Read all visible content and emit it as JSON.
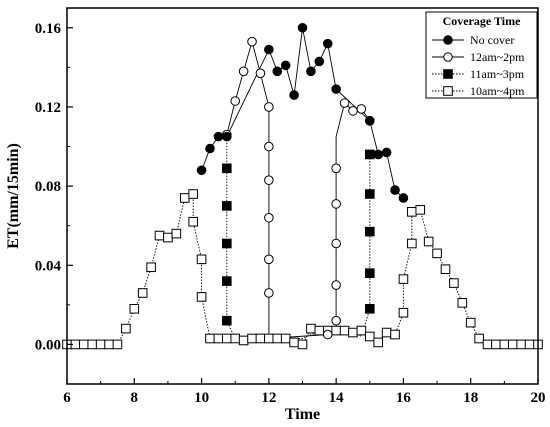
{
  "chart_data": {
    "type": "line",
    "xlabel": "Time",
    "ylabel": "ET(mm/15min)",
    "xlim": [
      6,
      20
    ],
    "ylim": [
      -0.02,
      0.17
    ],
    "xticks": [
      "6",
      "8",
      "10",
      "12",
      "14",
      "16",
      "18",
      "20"
    ],
    "yticks": [
      "0.00",
      "0.04",
      "0.08",
      "0.12",
      "0.16"
    ],
    "xtick_values": [
      6,
      8,
      10,
      12,
      14,
      16,
      18,
      20
    ],
    "ytick_values": [
      0.0,
      0.04,
      0.08,
      0.12,
      0.16
    ],
    "grid": false,
    "legend_title": "Coverage Time",
    "legend_position": "top-right",
    "series": [
      {
        "name": "No cover",
        "marker": "filled-circle",
        "line": "solid",
        "x": [
          10.0,
          10.25,
          10.5,
          10.75,
          12.0,
          12.25,
          12.5,
          12.75,
          13.0,
          13.25,
          13.5,
          13.75,
          14.0,
          15.0,
          15.25,
          15.5,
          15.75,
          16.0
        ],
        "y": [
          0.088,
          0.099,
          0.105,
          0.105,
          0.149,
          0.138,
          0.141,
          0.126,
          0.16,
          0.138,
          0.143,
          0.152,
          0.129,
          0.113,
          0.096,
          0.097,
          0.078,
          0.074
        ]
      },
      {
        "name": "12am~2pm",
        "marker": "open-circle",
        "line": "solid",
        "x": [
          10.75,
          11.0,
          11.25,
          11.5,
          11.75,
          12.0,
          12.0,
          12.0,
          12.0,
          12.0,
          12.0,
          13.75,
          14.0,
          14.0,
          14.0,
          14.0,
          14.0,
          14.25,
          14.5,
          14.75,
          15.0
        ],
        "y": [
          0.106,
          0.123,
          0.138,
          0.153,
          0.137,
          0.12,
          0.1,
          0.083,
          0.064,
          0.043,
          0.026,
          0.005,
          0.012,
          0.03,
          0.051,
          0.071,
          0.089,
          0.122,
          0.118,
          0.119,
          0.113
        ],
        "path_x": [
          10.75,
          11.0,
          11.25,
          11.5,
          11.75,
          12.0,
          12.0,
          12.0,
          12.0,
          12.0,
          12.0,
          12.0,
          13.75,
          14.0,
          14.0,
          14.0,
          14.0,
          14.0,
          14.0,
          14.25,
          14.5,
          14.75,
          15.0
        ],
        "path_y": [
          0.106,
          0.123,
          0.138,
          0.153,
          0.137,
          0.12,
          0.1,
          0.083,
          0.064,
          0.043,
          0.026,
          0.003,
          0.005,
          0.007,
          0.03,
          0.051,
          0.071,
          0.089,
          0.105,
          0.122,
          0.118,
          0.119,
          0.113
        ]
      },
      {
        "name": "11am~3pm",
        "marker": "filled-square",
        "line": "dotted",
        "x": [
          10.75,
          10.75,
          10.75,
          10.75,
          10.75,
          15.0,
          15.0,
          15.0,
          15.0,
          15.0
        ],
        "y": [
          0.089,
          0.07,
          0.051,
          0.032,
          0.012,
          0.018,
          0.036,
          0.057,
          0.076,
          0.096
        ],
        "path_x": [
          10.75,
          10.75,
          10.75,
          10.75,
          10.75,
          10.75,
          11.0,
          11.25,
          11.5,
          11.75,
          12.0,
          12.25,
          12.5,
          12.75,
          13.0,
          13.25,
          13.5,
          13.75,
          14.0,
          14.25,
          14.5,
          14.75,
          15.0,
          15.0,
          15.0,
          15.0,
          15.0,
          15.0
        ],
        "path_y": [
          0.105,
          0.089,
          0.07,
          0.051,
          0.032,
          0.012,
          0.003,
          0.003,
          0.003,
          0.003,
          0.003,
          0.003,
          0.003,
          0.003,
          0.003,
          0.005,
          0.006,
          0.006,
          0.006,
          0.006,
          0.006,
          0.004,
          0.018,
          0.036,
          0.057,
          0.076,
          0.096,
          0.096
        ]
      },
      {
        "name": "10am~4pm",
        "marker": "open-square",
        "line": "dotted",
        "x": [
          6.0,
          6.25,
          6.5,
          6.75,
          7.0,
          7.25,
          7.5,
          7.75,
          8.0,
          8.25,
          8.5,
          8.75,
          9.0,
          9.25,
          9.5,
          9.75,
          9.75,
          10.0,
          10.0,
          10.25,
          10.5,
          10.75,
          11.0,
          11.25,
          11.5,
          11.75,
          12.0,
          12.25,
          12.5,
          12.75,
          13.0,
          13.25,
          13.5,
          13.75,
          14.0,
          14.25,
          14.5,
          14.75,
          15.0,
          15.25,
          15.5,
          15.75,
          16.0,
          16.0,
          16.25,
          16.25,
          16.5,
          16.75,
          17.0,
          17.25,
          17.5,
          17.75,
          18.0,
          18.25,
          18.5,
          18.75,
          19.0,
          19.25,
          19.5,
          19.75,
          20.0
        ],
        "y": [
          0.0,
          0.0,
          0.0,
          0.0,
          0.0,
          0.0,
          0.0,
          0.008,
          0.018,
          0.026,
          0.039,
          0.055,
          0.054,
          0.056,
          0.074,
          0.076,
          0.062,
          0.043,
          0.024,
          0.003,
          0.003,
          0.003,
          0.003,
          0.002,
          0.003,
          0.003,
          0.003,
          0.003,
          0.003,
          0.001,
          0.0,
          0.008,
          0.007,
          0.007,
          0.007,
          0.007,
          0.006,
          0.007,
          0.004,
          0.001,
          0.006,
          0.005,
          0.016,
          0.033,
          0.051,
          0.067,
          0.068,
          0.052,
          0.046,
          0.038,
          0.031,
          0.021,
          0.011,
          0.003,
          0.0,
          0.0,
          0.0,
          0.0,
          0.0,
          0.0,
          0.0
        ]
      }
    ]
  }
}
